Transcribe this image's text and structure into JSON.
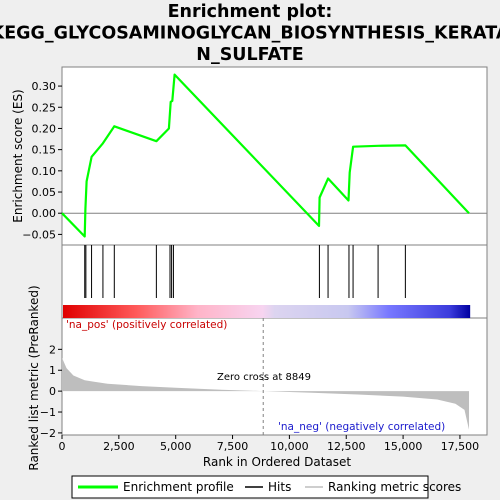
{
  "title_lines": [
    "Enrichment plot:",
    "KEGG_GLYCOSAMINOGLYCAN_BIOSYNTHESIS_KERATA",
    "N_SULFATE"
  ],
  "colors": {
    "es_line": "#00ff00",
    "hits": "#000000",
    "metric_fill": "#bebebe",
    "pos_text": "#c80000",
    "neg_text": "#1a1acd"
  },
  "chart_data": {
    "type": "line",
    "x_range": [
      0,
      18690
    ],
    "es_panel": {
      "ylabel": "Enrichment score (ES)",
      "ylim": [
        -0.075,
        0.345
      ],
      "yticks": [
        -0.05,
        0.0,
        0.05,
        0.1,
        0.15,
        0.2,
        0.25,
        0.3
      ],
      "ytick_labels": [
        "−0.05",
        "0.00",
        "0.05",
        "0.10",
        "0.15",
        "0.20",
        "0.25",
        "0.30"
      ],
      "series": [
        {
          "name": "Enrichment profile",
          "x": [
            0,
            1000,
            1030,
            1080,
            1300,
            1800,
            2300,
            4150,
            4700,
            4780,
            4850,
            4950,
            11300,
            11330,
            11700,
            12600,
            12650,
            12800,
            13900,
            15100,
            17900
          ],
          "y": [
            0.0,
            -0.055,
            0.01,
            0.075,
            0.133,
            0.165,
            0.205,
            0.17,
            0.2,
            0.263,
            0.265,
            0.327,
            -0.03,
            0.037,
            0.082,
            0.03,
            0.096,
            0.157,
            0.159,
            0.16,
            0.0
          ]
        }
      ]
    },
    "hits_panel": {
      "hits": [
        1000,
        1050,
        1300,
        1800,
        2300,
        4150,
        4750,
        4820,
        4900,
        11320,
        11700,
        12620,
        12800,
        13900,
        15100
      ]
    },
    "metric_panel": {
      "ylabel": "Ranked list metric (PreRanked)",
      "ylim": [
        -2.1,
        3.5
      ],
      "yticks": [
        -2,
        -1,
        0,
        1,
        2
      ],
      "ytick_labels": [
        "−2",
        "−1",
        "0",
        "1",
        "2"
      ],
      "curve_x": [
        0,
        200,
        500,
        1000,
        2000,
        3500,
        5000,
        7000,
        8849,
        11000,
        13000,
        15000,
        16500,
        17300,
        17700,
        17900
      ],
      "curve_y": [
        1.6,
        1.1,
        0.75,
        0.52,
        0.35,
        0.24,
        0.16,
        0.07,
        0.0,
        -0.08,
        -0.16,
        -0.26,
        -0.4,
        -0.6,
        -0.9,
        -1.85
      ],
      "zero_cross_label": "Zero cross at 8849",
      "zero_cross_x": 8849,
      "pos_label": "'na_pos' (positively correlated)",
      "neg_label": "'na_neg' (negatively correlated)"
    },
    "xlabel": "Rank in Ordered Dataset",
    "xticks": [
      0,
      2500,
      5000,
      7500,
      10000,
      12500,
      15000,
      17500
    ],
    "xtick_labels": [
      "0",
      "2,500",
      "5,000",
      "7,500",
      "10,000",
      "12,500",
      "15,000",
      "17,500"
    ],
    "legend": {
      "placement": "bottom",
      "entries": [
        "Enrichment profile",
        "Hits",
        "Ranking metric scores"
      ]
    }
  }
}
